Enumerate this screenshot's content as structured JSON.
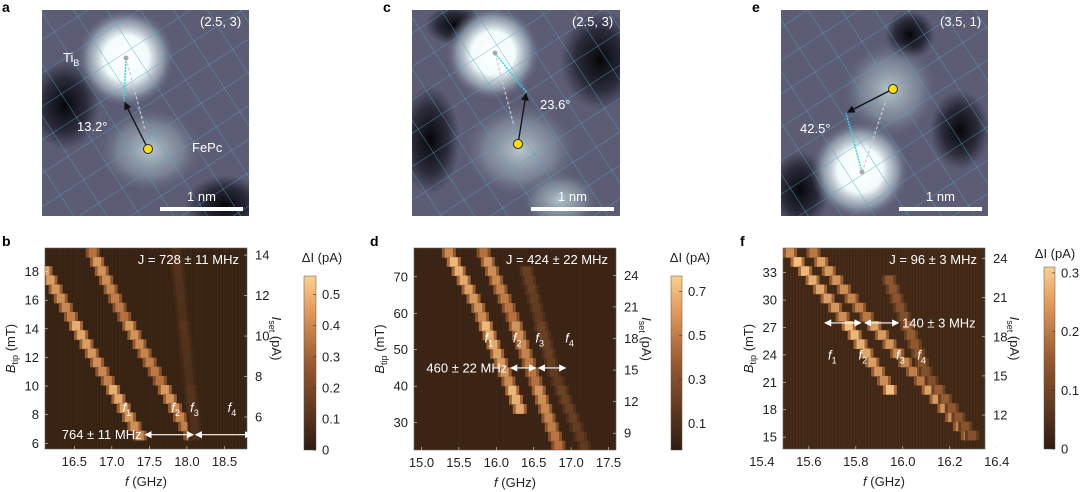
{
  "colors": {
    "cmap_low": "#2e1c10",
    "cmap_mid": "#b8703c",
    "cmap_high": "#fbd08f",
    "grid": "#4fa6c8",
    "cyan": "#3fd0e0",
    "yellow": "#ffe000"
  },
  "images": [
    {
      "panel": "a",
      "coords": "(2.5, 3)",
      "angle": "13.2°",
      "scale": "1 nm",
      "label_ti": "Ti",
      "label_ti_sub": "B",
      "label_fepc": "FePc"
    },
    {
      "panel": "c",
      "coords": "(2.5, 3)",
      "angle": "23.6°",
      "scale": "1 nm"
    },
    {
      "panel": "e",
      "coords": "(3.5, 1)",
      "angle": "42.5°",
      "scale": "1 nm"
    }
  ],
  "chart_data": [
    {
      "type": "heatmap",
      "panel": "b",
      "xlabel": "f (GHz)",
      "ylabel": "B_tip (mT)",
      "y2label": "I_set (pA)",
      "cbar_label": "ΔI (pA)",
      "xlim": [
        16.11,
        18.8
      ],
      "ylim": [
        5.6,
        19.65
      ],
      "y2lim": [
        4.42,
        14.35
      ],
      "clim": [
        0,
        0.56
      ],
      "xticks": [
        "16.5",
        "17.0",
        "17.5",
        "18.0",
        "18.5"
      ],
      "yticks": [
        "6",
        "8",
        "10",
        "12",
        "14",
        "16",
        "18"
      ],
      "y2ticks": [
        "6",
        "8",
        "10",
        "12",
        "14"
      ],
      "cticks": [
        "0",
        "0.1",
        "0.2",
        "0.3",
        "0.4",
        "0.5"
      ],
      "annotation_J": "J = 728 ± 11 MHz",
      "splitting": {
        "text": "764 ± 11 MHz",
        "B": 6.6,
        "arrows": [
          [
            17.45,
            18.08
          ],
          [
            18.12,
            18.85
          ]
        ]
      },
      "peak_labels": [
        {
          "t": "f",
          "s": "1",
          "x": 17.2,
          "y": 8.2
        },
        {
          "t": "f",
          "s": "2",
          "x": 17.85,
          "y": 8.2
        },
        {
          "t": "f",
          "s": "3",
          "x": 18.1,
          "y": 8.2
        },
        {
          "t": "f",
          "s": "4",
          "x": 18.6,
          "y": 8.2
        }
      ],
      "traces": [
        {
          "name": "f1",
          "f": [
            16.1,
            16.6,
            17.4
          ],
          "B": [
            18.2,
            13.5,
            6.3
          ],
          "dI": 0.5
        },
        {
          "name": "f2",
          "f": [
            16.72,
            17.15,
            18.05
          ],
          "B": [
            19.6,
            15,
            6.5
          ],
          "dI": 0.45
        },
        {
          "name": "f3",
          "f": [
            17.85,
            17.98,
            18.12
          ],
          "B": [
            19.6,
            13,
            6.3
          ],
          "dI": 0.1
        }
      ]
    },
    {
      "type": "heatmap",
      "panel": "d",
      "xlabel": "f (GHz)",
      "ylabel": "B_tip (mT)",
      "y2label": "I_set (pA)",
      "cbar_label": "ΔI (pA)",
      "xlim": [
        14.9,
        17.6
      ],
      "ylim": [
        22.5,
        77.9
      ],
      "y2lim": [
        7.4,
        26.6
      ],
      "clim": [
        -0.02,
        0.77
      ],
      "xticks": [
        "15.0",
        "15.5",
        "16.0",
        "16.5",
        "17.0",
        "17.5"
      ],
      "yticks": [
        "30",
        "40",
        "50",
        "60",
        "70"
      ],
      "y2ticks": [
        "9",
        "12",
        "15",
        "18",
        "21",
        "24"
      ],
      "cticks": [
        "0.1",
        "0.3",
        "0.5",
        "0.7"
      ],
      "annotation_J": "J = 424 ± 22 MHz",
      "splitting": {
        "text": "460 ± 22 MHz",
        "B": 45,
        "arrows": [
          [
            16.2,
            16.52
          ],
          [
            16.57,
            16.92
          ]
        ]
      },
      "peak_labels": [
        {
          "t": "f",
          "s": "1",
          "x": 15.9,
          "y": 52
        },
        {
          "t": "f",
          "s": "2",
          "x": 16.28,
          "y": 52
        },
        {
          "t": "f",
          "s": "3",
          "x": 16.58,
          "y": 52
        },
        {
          "t": "f",
          "s": "4",
          "x": 16.98,
          "y": 52
        }
      ],
      "traces": [
        {
          "name": "f1",
          "f": [
            15.33,
            15.75,
            16.35
          ],
          "B": [
            78,
            62,
            32
          ],
          "dI": 0.72
        },
        {
          "name": "f2",
          "f": [
            15.8,
            16.2,
            16.85
          ],
          "B": [
            78,
            60,
            22.5
          ],
          "dI": 0.6
        },
        {
          "name": "f3",
          "f": [
            16.4,
            16.75,
            17.2
          ],
          "B": [
            72,
            45,
            22.5
          ],
          "dI": 0.2
        }
      ]
    },
    {
      "type": "heatmap",
      "panel": "f",
      "xlabel": "f (GHz)",
      "ylabel": "B_tip (mT)",
      "y2label": "I_set (pA)",
      "cbar_label": "ΔI (pA)",
      "xlim": [
        15.49,
        16.35
      ],
      "ylim": [
        13.7,
        35.7
      ],
      "y2lim": [
        9.4,
        24.8
      ],
      "clim": [
        0,
        0.31
      ],
      "xticks": [
        "15.4",
        "15.6",
        "15.8",
        "16.0",
        "16.2",
        "16.4"
      ],
      "yticks": [
        "15",
        "18",
        "21",
        "24",
        "27",
        "30",
        "33"
      ],
      "y2ticks": [
        "12",
        "15",
        "18",
        "21",
        "24"
      ],
      "cticks": [
        "0",
        "0.1",
        "0.2",
        "0.3"
      ],
      "annotation_J": "J = 96 ± 3 MHz",
      "splitting": {
        "text": "140 ± 3 MHz",
        "B": 27.5,
        "arrows": [
          [
            15.67,
            15.82
          ],
          [
            15.84,
            15.98
          ]
        ]
      },
      "peak_labels": [
        {
          "t": "f",
          "s": "1",
          "x": 15.7,
          "y": 23.5
        },
        {
          "t": "f",
          "s": "2",
          "x": 15.83,
          "y": 23.5
        },
        {
          "t": "f",
          "s": "3",
          "x": 15.99,
          "y": 23.5
        },
        {
          "t": "f",
          "s": "4",
          "x": 16.08,
          "y": 23.5
        }
      ],
      "traces": [
        {
          "name": "f1",
          "f": [
            15.52,
            15.75,
            15.95
          ],
          "B": [
            35.2,
            28,
            20
          ],
          "dI": 0.3
        },
        {
          "name": "f2",
          "f": [
            15.62,
            15.95,
            16.3
          ],
          "B": [
            35.2,
            25,
            14.5
          ],
          "dI": 0.26
        },
        {
          "name": "f3",
          "f": [
            15.93,
            16.1,
            16.3
          ],
          "B": [
            33,
            22,
            15
          ],
          "dI": 0.15
        }
      ]
    }
  ]
}
